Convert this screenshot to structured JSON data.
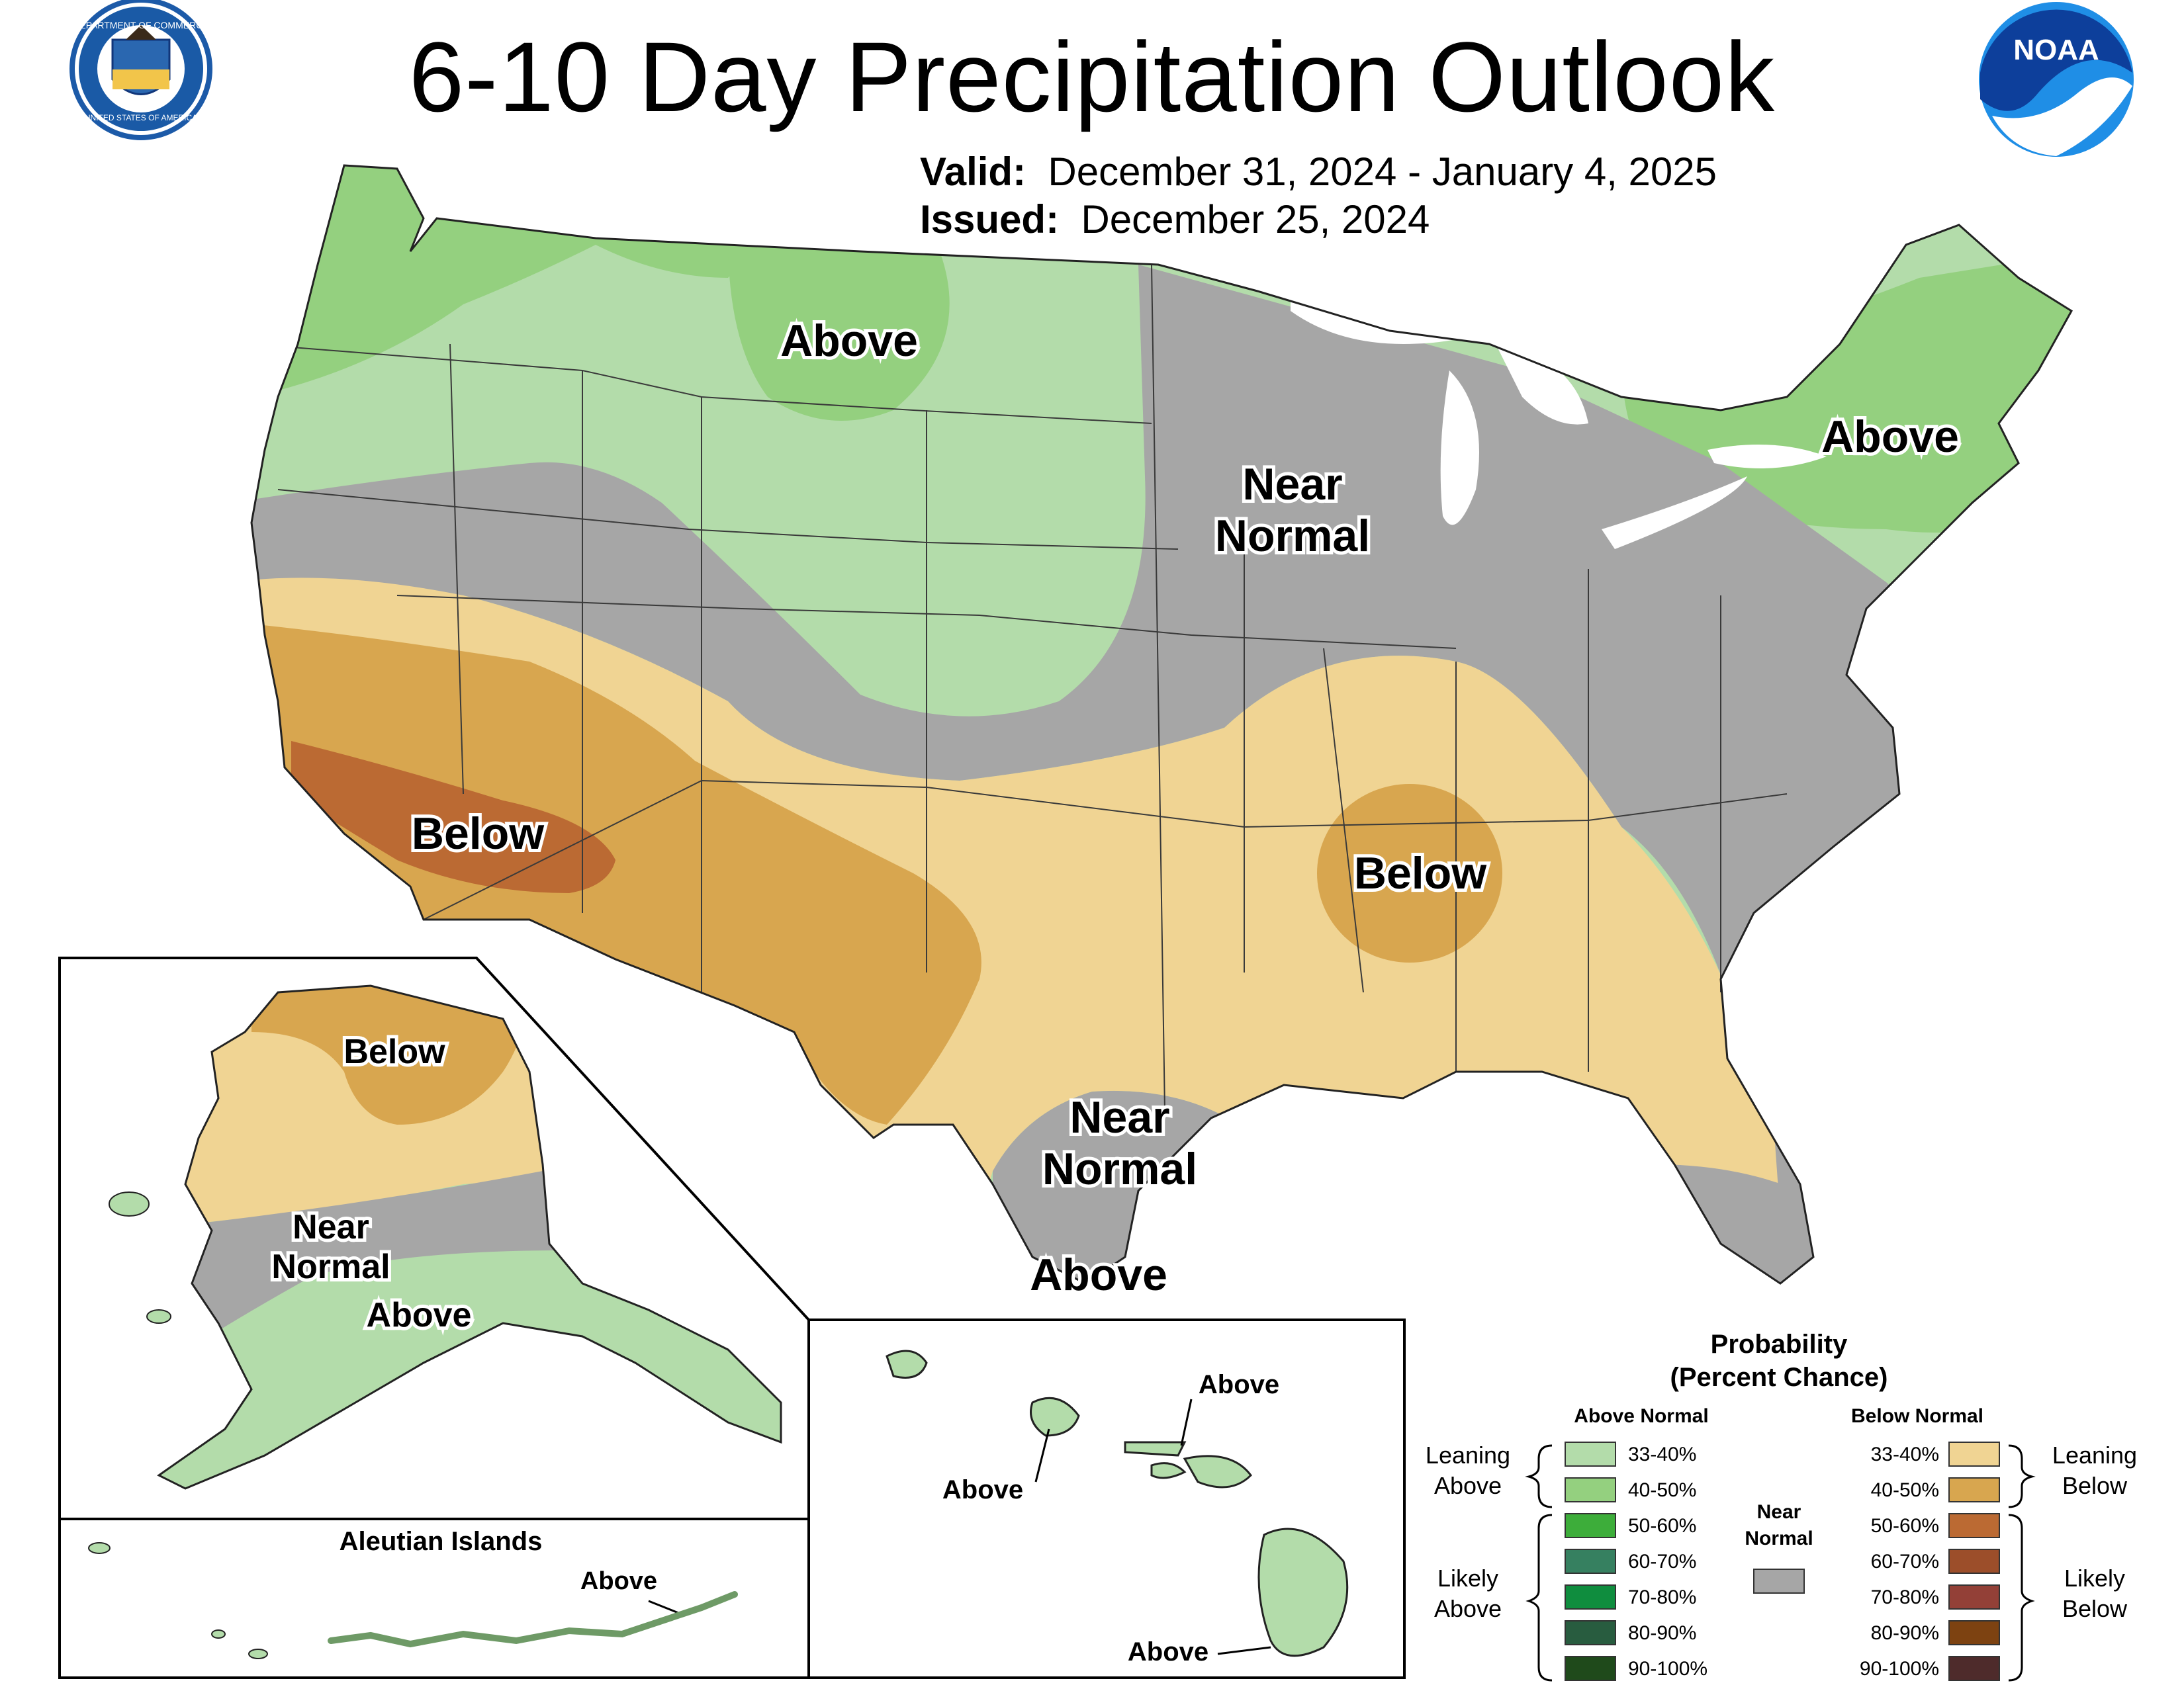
{
  "header": {
    "title": "6-10 Day Precipitation Outlook",
    "valid_label": "Valid:",
    "valid_value": "December 31, 2024 - January 4, 2025",
    "issued_label": "Issued:",
    "issued_value": "December 25, 2024"
  },
  "logos": {
    "left_seal_text_top": "DEPARTMENT OF COMMERCE",
    "left_seal_text_bottom": "UNITED STATES OF AMERICA",
    "right_logo_text": "NOAA"
  },
  "map_labels": {
    "conus_north_above": "Above",
    "northeast_above": "Above",
    "central_near_normal_1": "Near",
    "central_near_normal_2": "Normal",
    "southwest_below": "Below",
    "southeast_below": "Below",
    "texas_near_normal_1": "Near",
    "texas_near_normal_2": "Normal",
    "texas_above": "Above"
  },
  "alaska": {
    "below": "Below",
    "near_1": "Near",
    "near_2": "Normal",
    "above": "Above",
    "aleutian_title": "Aleutian Islands",
    "aleutian_above": "Above"
  },
  "hawaii": {
    "above_top": "Above",
    "above_left": "Above",
    "above_bottom": "Above"
  },
  "legend": {
    "title_1": "Probability",
    "title_2": "(Percent Chance)",
    "above_header": "Above Normal",
    "below_header": "Below Normal",
    "leaning_above_1": "Leaning",
    "leaning_above_2": "Above",
    "likely_above_1": "Likely",
    "likely_above_2": "Above",
    "leaning_below_1": "Leaning",
    "leaning_below_2": "Below",
    "likely_below_1": "Likely",
    "likely_below_2": "Below",
    "near_1": "Near",
    "near_2": "Normal",
    "near_color": "#a6a6a6",
    "above_items": [
      {
        "label": "33-40%",
        "color": "#b3dcaa"
      },
      {
        "label": "40-50%",
        "color": "#94d07f"
      },
      {
        "label": "50-60%",
        "color": "#3dad3a"
      },
      {
        "label": "60-70%",
        "color": "#368060"
      },
      {
        "label": "70-80%",
        "color": "#0f8d3e"
      },
      {
        "label": "80-90%",
        "color": "#285c3f"
      },
      {
        "label": "90-100%",
        "color": "#1f4a1b"
      }
    ],
    "below_items": [
      {
        "label": "33-40%",
        "color": "#f0d493"
      },
      {
        "label": "40-50%",
        "color": "#d8a64f"
      },
      {
        "label": "50-60%",
        "color": "#bb6a33"
      },
      {
        "label": "60-70%",
        "color": "#9c4e2a"
      },
      {
        "label": "70-80%",
        "color": "#934037"
      },
      {
        "label": "80-90%",
        "color": "#7d4211"
      },
      {
        "label": "90-100%",
        "color": "#4e2b2b"
      }
    ]
  },
  "colors": {
    "above_33_40": "#b3dcaa",
    "above_40_50": "#94d07f",
    "below_33_40": "#f0d493",
    "below_40_50": "#d8a64f",
    "below_50_60": "#bb6a33",
    "near_normal": "#a6a6a6"
  }
}
